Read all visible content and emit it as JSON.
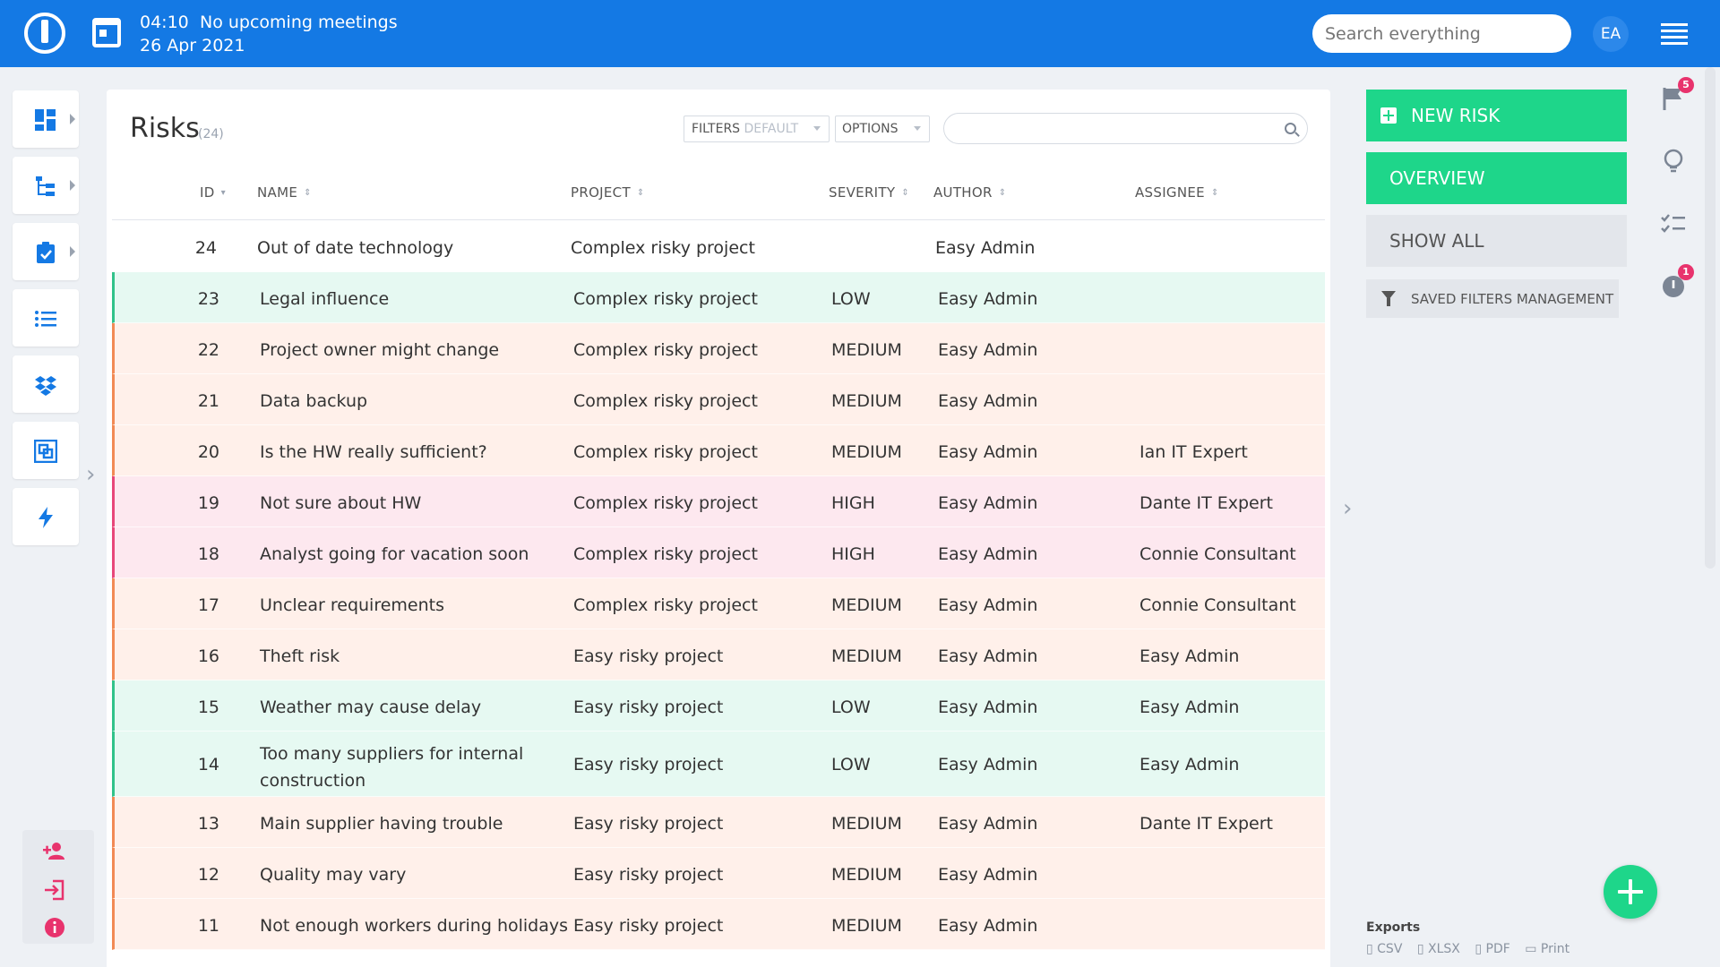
{
  "header": {
    "time": "04:10",
    "meetings": "No upcoming meetings",
    "date": "26 Apr 2021",
    "search_placeholder": "Search everything",
    "avatar_initials": "EA"
  },
  "panel": {
    "title": "Risks",
    "count": "(24)",
    "filters_label": "FILTERS",
    "filters_value": "DEFAULT",
    "options_label": "OPTIONS"
  },
  "columns": {
    "id": "ID",
    "name": "NAME",
    "project": "PROJECT",
    "severity": "SEVERITY",
    "author": "AUTHOR",
    "assignee": "ASSIGNEE"
  },
  "rows": [
    {
      "id": "24",
      "name": "Out of date technology",
      "project": "Complex risky project",
      "severity": "",
      "author": "Easy Admin",
      "assignee": ""
    },
    {
      "id": "23",
      "name": "Legal influence",
      "project": "Complex risky project",
      "severity": "LOW",
      "author": "Easy Admin",
      "assignee": ""
    },
    {
      "id": "22",
      "name": "Project owner might change",
      "project": "Complex risky project",
      "severity": "MEDIUM",
      "author": "Easy Admin",
      "assignee": ""
    },
    {
      "id": "21",
      "name": "Data backup",
      "project": "Complex risky project",
      "severity": "MEDIUM",
      "author": "Easy Admin",
      "assignee": ""
    },
    {
      "id": "20",
      "name": "Is the HW really sufficient?",
      "project": "Complex risky project",
      "severity": "MEDIUM",
      "author": "Easy Admin",
      "assignee": "Ian IT Expert"
    },
    {
      "id": "19",
      "name": "Not sure about HW",
      "project": "Complex risky project",
      "severity": "HIGH",
      "author": "Easy Admin",
      "assignee": "Dante IT Expert"
    },
    {
      "id": "18",
      "name": "Analyst going for vacation soon",
      "project": "Complex risky project",
      "severity": "HIGH",
      "author": "Easy Admin",
      "assignee": "Connie Consultant"
    },
    {
      "id": "17",
      "name": "Unclear requirements",
      "project": "Complex risky project",
      "severity": "MEDIUM",
      "author": "Easy Admin",
      "assignee": "Connie Consultant"
    },
    {
      "id": "16",
      "name": "Theft risk",
      "project": "Easy risky project",
      "severity": "MEDIUM",
      "author": "Easy Admin",
      "assignee": "Easy Admin"
    },
    {
      "id": "15",
      "name": "Weather may cause delay",
      "project": "Easy risky project",
      "severity": "LOW",
      "author": "Easy Admin",
      "assignee": "Easy Admin"
    },
    {
      "id": "14",
      "name": "Too many suppliers for internal construction",
      "project": "Easy risky project",
      "severity": "LOW",
      "author": "Easy Admin",
      "assignee": "Easy Admin"
    },
    {
      "id": "13",
      "name": "Main supplier having trouble",
      "project": "Easy risky project",
      "severity": "MEDIUM",
      "author": "Easy Admin",
      "assignee": "Dante IT Expert"
    },
    {
      "id": "12",
      "name": "Quality may vary",
      "project": "Easy risky project",
      "severity": "MEDIUM",
      "author": "Easy Admin",
      "assignee": ""
    },
    {
      "id": "11",
      "name": "Not enough workers during holidays",
      "project": "Easy risky project",
      "severity": "MEDIUM",
      "author": "Easy Admin",
      "assignee": ""
    }
  ],
  "actions": {
    "new_risk": "NEW RISK",
    "overview": "OVERVIEW",
    "show_all": "SHOW ALL",
    "saved_filters": "SAVED FILTERS MANAGEMENT"
  },
  "exports": {
    "title": "Exports",
    "csv": "CSV",
    "xlsx": "XLSX",
    "pdf": "PDF",
    "print": "Print"
  },
  "rail": {
    "flag_badge": "5",
    "timer_badge": "1"
  },
  "colors": {
    "brand": "#1479e4",
    "accent_green": "#1ed68a",
    "low": "#31c28a",
    "medium": "#f28a55",
    "high": "#e8477a",
    "badge": "#e8336d"
  },
  "icons": {
    "left_nav": [
      "dashboard-icon",
      "tree-icon",
      "clipboard-check-icon",
      "list-icon",
      "dropbox-icon",
      "layers-icon",
      "bolt-icon"
    ],
    "left_bottom": [
      "add-user-icon",
      "login-icon",
      "info-icon"
    ],
    "right_rail": [
      "flag-icon",
      "lightbulb-icon",
      "checklist-icon",
      "timer-icon"
    ]
  }
}
